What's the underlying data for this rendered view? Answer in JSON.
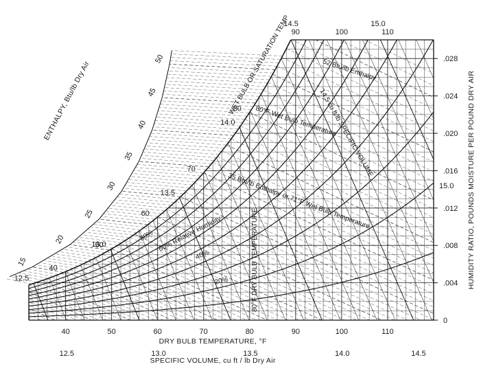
{
  "chart_data": {
    "type": "psychrometric",
    "title": "",
    "xlabel": "DRY BULB TEMPERATURE, °F",
    "ylabel_right": "HUMIDITY RATIO, POUNDS MOISTURE PER POUND DRY AIR",
    "enthalpy_axis_label": "ENTHALPY, Btu/lb Dry Air",
    "specific_volume_axis_label": "SPECIFIC VOLUME, cu ft / lb Dry Air",
    "saturation_label": "WET BULB OR SATURATION TEMP",
    "xlim": [
      32,
      120
    ],
    "ylim": [
      0,
      0.03
    ],
    "x_ticks": [
      40,
      50,
      60,
      70,
      80,
      90,
      100,
      110
    ],
    "y_ticks": [
      {
        "value": 0,
        "label": "0"
      },
      {
        "value": 0.004,
        "label": ".004"
      },
      {
        "value": 0.008,
        "label": ".008"
      },
      {
        "value": 0.012,
        "label": ".012"
      },
      {
        "value": 0.016,
        "label": ".016"
      },
      {
        "value": 0.02,
        "label": ".020"
      },
      {
        "value": 0.024,
        "label": ".024"
      },
      {
        "value": 0.028,
        "label": ".028"
      }
    ],
    "enthalpy_ticks": [
      15,
      20,
      25,
      30,
      35,
      40,
      45,
      50
    ],
    "wet_bulb_labels": [
      40,
      50,
      60,
      70,
      80,
      90,
      100,
      110
    ],
    "specific_volume_ticks": [
      "12.5",
      "13.0",
      "13.5",
      "14.0",
      "14.5"
    ],
    "specific_volume_top_labels": [
      "14.5",
      "15.0"
    ],
    "specific_volume_right_label": "15.0",
    "specific_volume_dial_labels": [
      "12.5",
      "13.0",
      "13.5",
      "14.0"
    ],
    "rh_curves": [
      {
        "rh": 20,
        "label": "20%"
      },
      {
        "rh": 40,
        "label": "40%"
      },
      {
        "rh": 60,
        "label": "60% Relative Humidity"
      },
      {
        "rh": 80,
        "label": "80%"
      },
      {
        "rh": 100,
        "label": ""
      }
    ],
    "rh_all_lines": [
      10,
      20,
      30,
      40,
      50,
      60,
      70,
      80,
      90,
      100
    ],
    "annotations": [
      "52 Btu/lb Enthalpy",
      "80°F Wet Bulb Temperature",
      "14.5 cu ft/lb SPECIFIC VOLUME",
      "35 Btu/lb Enthalpy or 71°F Wet Bulb Temperature",
      "80°F DRY BULB TEMPERATURE"
    ],
    "grid": true,
    "pressure_in_hg": 29.92
  }
}
